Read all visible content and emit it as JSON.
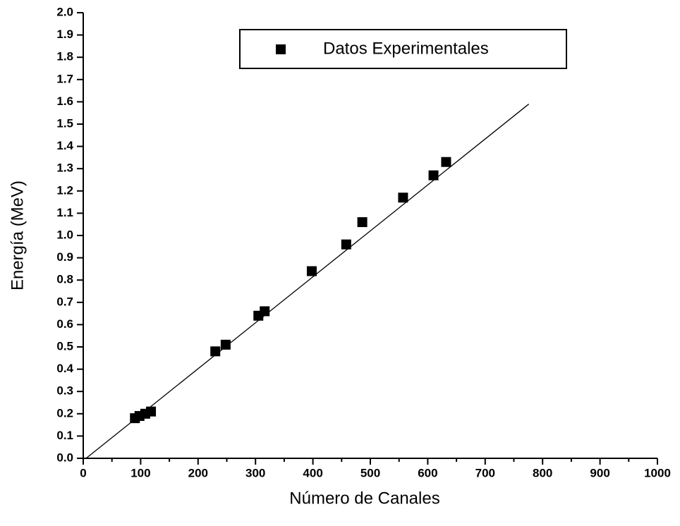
{
  "chart_data": {
    "type": "scatter",
    "xlabel": "Número de Canales",
    "ylabel": "Energía (MeV)",
    "series": [
      {
        "name": "Datos Experimentales",
        "color": "#000000",
        "x": [
          90,
          98,
          108,
          118,
          230,
          248,
          305,
          316,
          398,
          458,
          486,
          557,
          610,
          632
        ],
        "values": [
          0.18,
          0.19,
          0.2,
          0.21,
          0.48,
          0.51,
          0.64,
          0.66,
          0.84,
          0.96,
          1.06,
          1.17,
          1.27,
          1.33
        ]
      }
    ],
    "fit": {
      "color": "#000000",
      "x": [
        5,
        776
      ],
      "values": [
        0,
        1.59
      ]
    },
    "xlim": [
      0,
      1000
    ],
    "xticks": [
      0,
      100,
      200,
      300,
      400,
      500,
      600,
      700,
      800,
      900,
      1000
    ],
    "ylim": [
      0,
      2.0
    ],
    "yticks": [
      {
        "value": 0,
        "label": "0.0"
      },
      0.1,
      0.2,
      0.3,
      0.4,
      0.5,
      0.6,
      0.7,
      0.8,
      0.9,
      {
        "value": 1,
        "label": "1.0"
      },
      1.1,
      1.2,
      1.3,
      1.4,
      1.5,
      1.6,
      1.7,
      1.8,
      1.9,
      {
        "value": 2,
        "label": "2.0"
      }
    ],
    "legend": "top-right",
    "grid": false
  }
}
